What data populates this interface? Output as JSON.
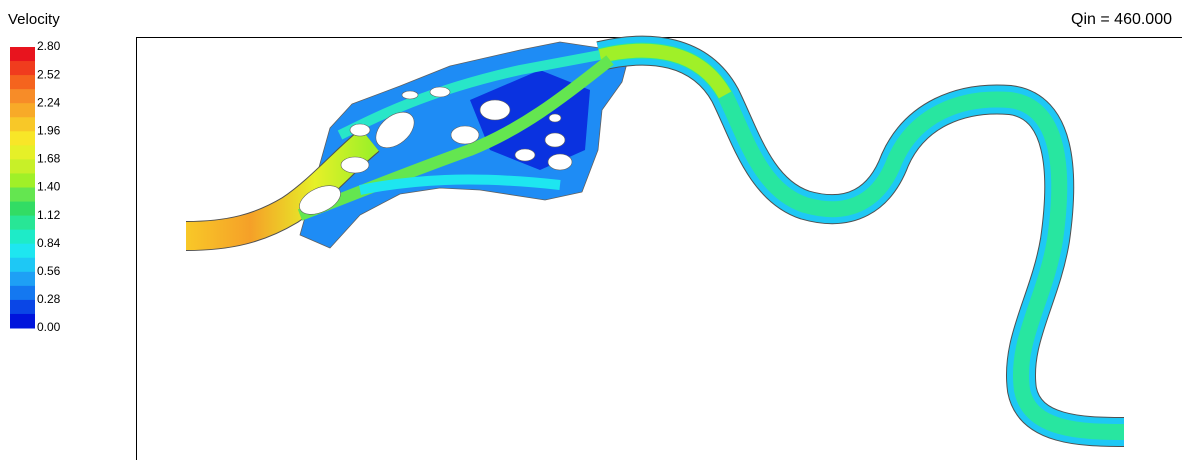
{
  "legend": {
    "title": "Velocity",
    "labels": [
      "2.80",
      "2.52",
      "2.24",
      "1.96",
      "1.68",
      "1.40",
      "1.12",
      "0.84",
      "0.56",
      "0.28",
      "0.00"
    ]
  },
  "header": {
    "title": "Qin = 460.000"
  }
}
